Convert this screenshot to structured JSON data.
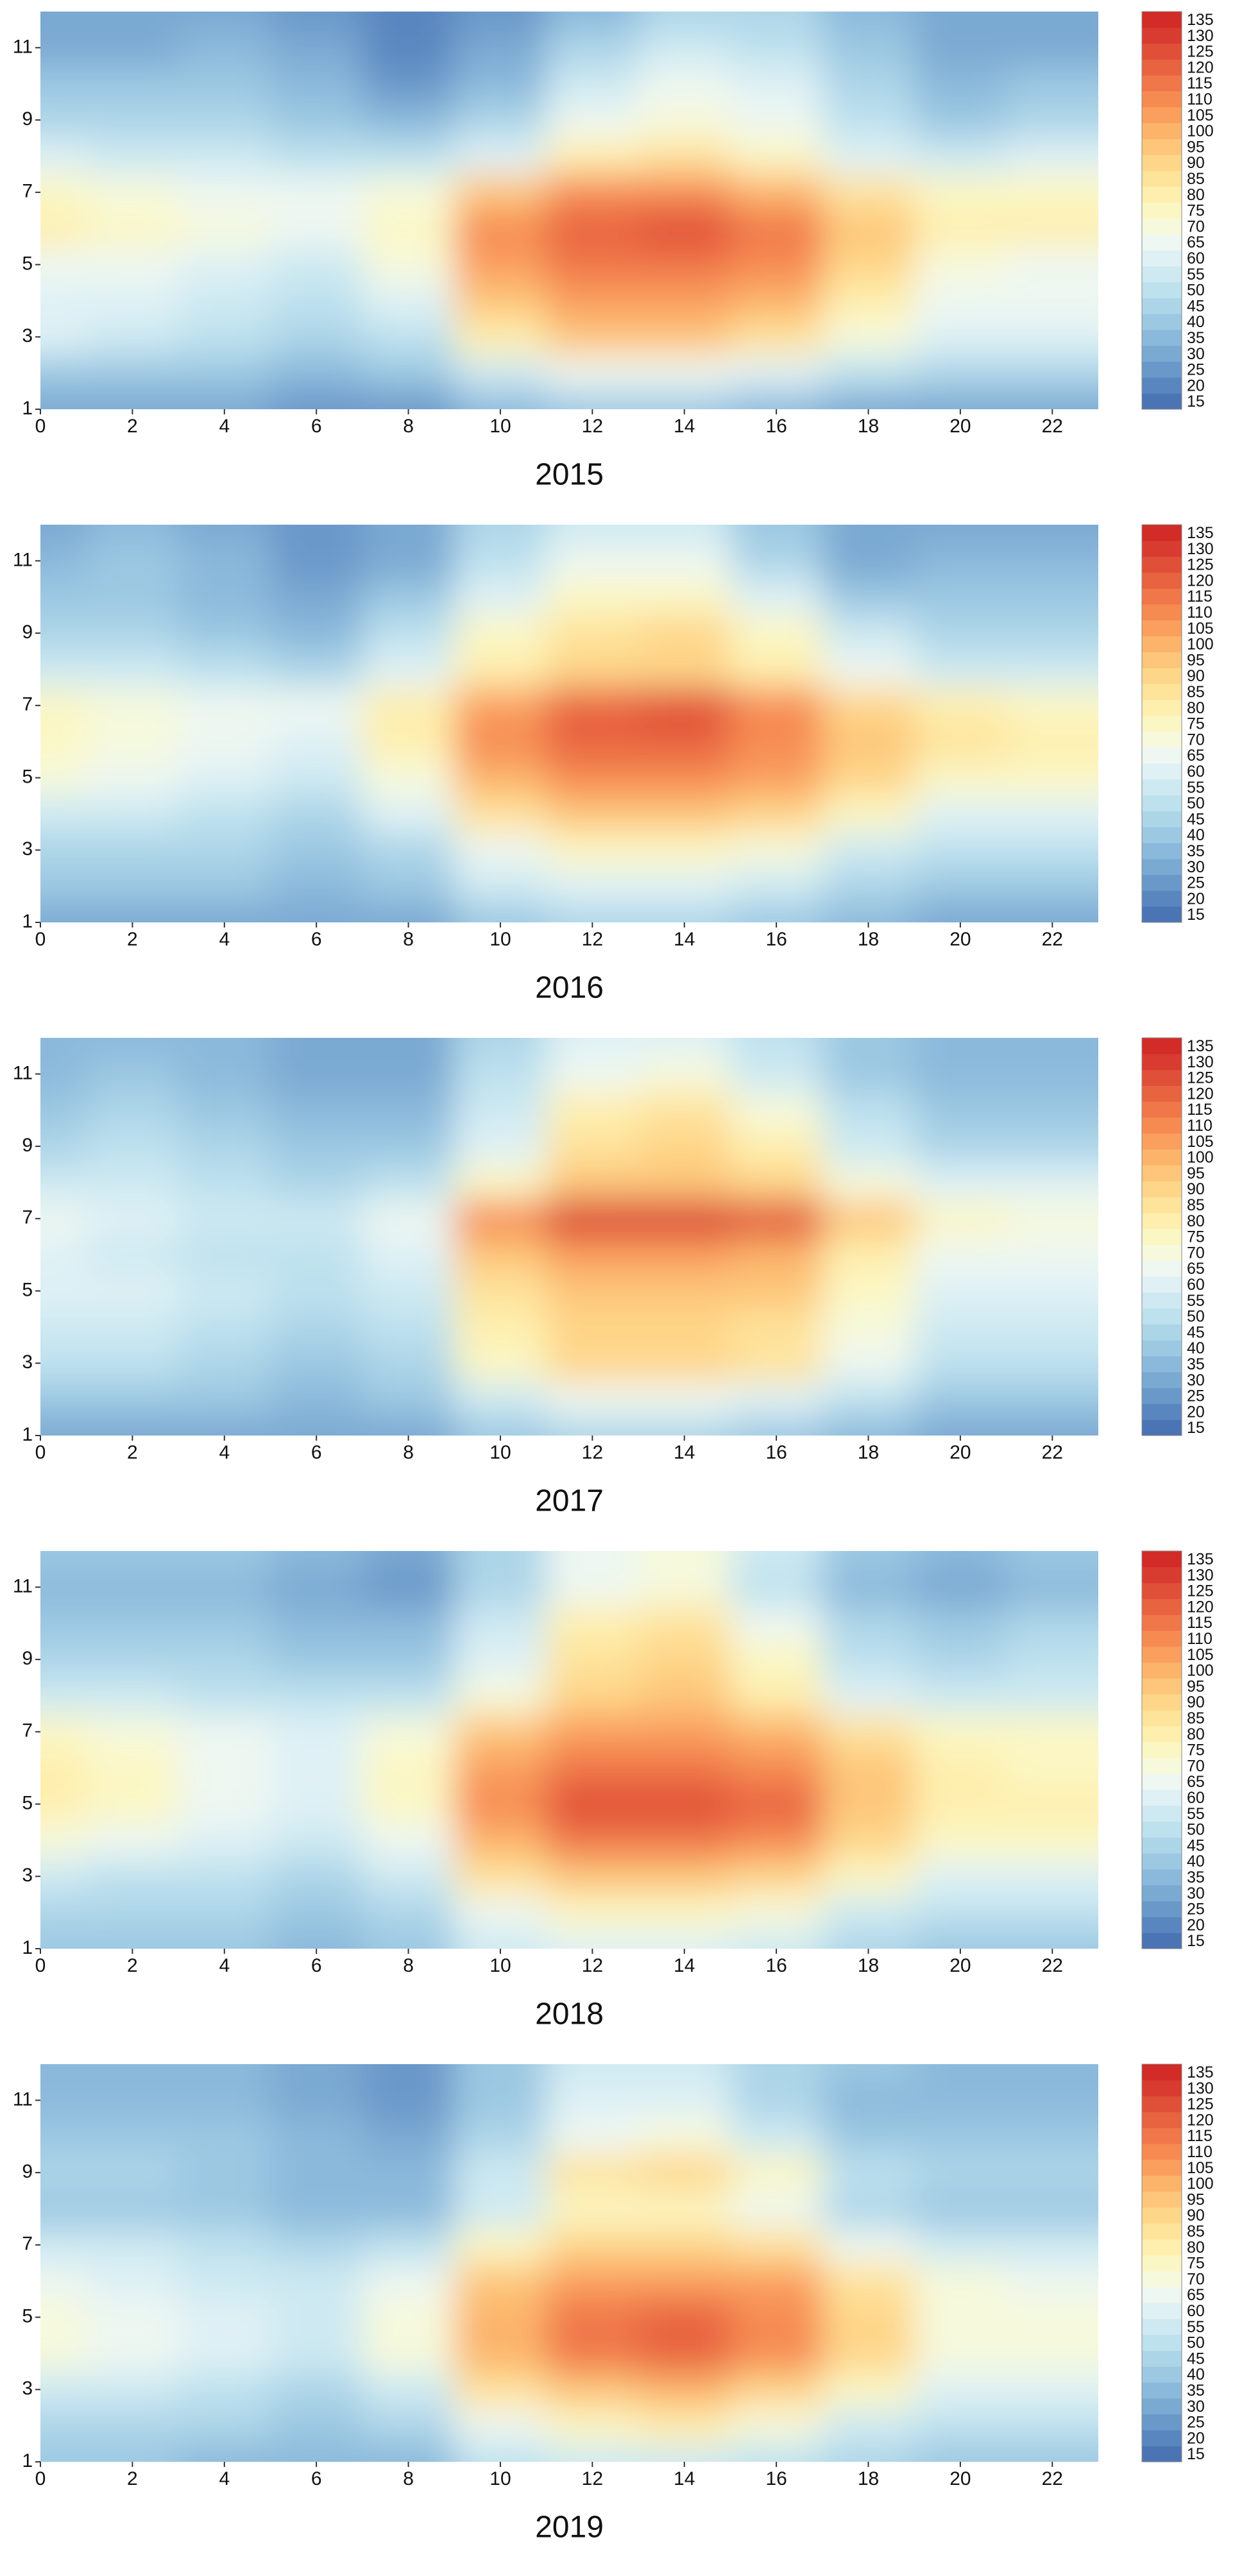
{
  "chart_data": [
    {
      "type": "contour",
      "title": "2015",
      "x": [
        0,
        2,
        4,
        6,
        8,
        10,
        12,
        14,
        16,
        18,
        20,
        22
      ],
      "y": [
        1,
        2,
        3,
        4,
        5,
        6,
        7,
        8,
        9,
        10,
        11,
        12
      ],
      "z": [
        [
          30,
          30,
          30,
          25,
          25,
          35,
          40,
          40,
          35,
          30,
          30,
          30
        ],
        [
          40,
          40,
          40,
          35,
          40,
          55,
          65,
          65,
          60,
          50,
          45,
          45
        ],
        [
          60,
          55,
          50,
          45,
          50,
          80,
          95,
          95,
          85,
          70,
          60,
          60
        ],
        [
          60,
          60,
          55,
          50,
          60,
          95,
          105,
          105,
          100,
          80,
          65,
          65
        ],
        [
          65,
          65,
          60,
          55,
          70,
          105,
          115,
          115,
          110,
          90,
          70,
          65
        ],
        [
          80,
          75,
          70,
          65,
          75,
          110,
          120,
          125,
          115,
          95,
          80,
          80
        ],
        [
          75,
          70,
          65,
          65,
          70,
          95,
          110,
          110,
          100,
          85,
          75,
          75
        ],
        [
          60,
          55,
          55,
          50,
          50,
          60,
          80,
          85,
          75,
          60,
          55,
          60
        ],
        [
          45,
          45,
          45,
          40,
          35,
          45,
          65,
          70,
          65,
          50,
          40,
          45
        ],
        [
          40,
          40,
          40,
          35,
          25,
          35,
          55,
          65,
          60,
          45,
          35,
          40
        ],
        [
          30,
          30,
          35,
          30,
          20,
          30,
          45,
          55,
          50,
          40,
          30,
          30
        ],
        [
          30,
          30,
          30,
          25,
          20,
          25,
          35,
          45,
          45,
          35,
          30,
          30
        ]
      ],
      "xlim": [
        0,
        23
      ],
      "ylim": [
        1,
        12
      ],
      "xticks": [
        0,
        2,
        4,
        6,
        8,
        10,
        12,
        14,
        16,
        18,
        20,
        22
      ],
      "yticks": [
        1,
        3,
        5,
        7,
        9,
        11
      ],
      "levels": [
        15,
        20,
        25,
        30,
        35,
        40,
        45,
        50,
        55,
        60,
        65,
        70,
        75,
        80,
        85,
        90,
        95,
        100,
        105,
        110,
        115,
        120,
        125,
        130,
        135
      ],
      "colors": [
        "#4a74b4",
        "#5a86bf",
        "#6a98c9",
        "#7aa9d2",
        "#8bb9db",
        "#9cc8e2",
        "#add5e8",
        "#bee1ee",
        "#cee9f2",
        "#dff1f5",
        "#eef7f1",
        "#f6f9dc",
        "#fbf7c4",
        "#feefae",
        "#fee39b",
        "#fed689",
        "#fdc67a",
        "#fcb46b",
        "#fa9f5e",
        "#f68b52",
        "#f07749",
        "#e86340",
        "#e04f38",
        "#d83b30",
        "#d22b28"
      ]
    },
    {
      "type": "contour",
      "title": "2016",
      "x": [
        0,
        2,
        4,
        6,
        8,
        10,
        12,
        14,
        16,
        18,
        20,
        22
      ],
      "y": [
        1,
        2,
        3,
        4,
        5,
        6,
        7,
        8,
        9,
        10,
        11,
        12
      ],
      "z": [
        [
          30,
          30,
          30,
          30,
          30,
          40,
          45,
          45,
          40,
          35,
          30,
          30
        ],
        [
          40,
          40,
          40,
          35,
          40,
          55,
          60,
          60,
          55,
          45,
          40,
          40
        ],
        [
          45,
          45,
          45,
          40,
          45,
          65,
          75,
          75,
          70,
          55,
          50,
          50
        ],
        [
          55,
          55,
          50,
          45,
          60,
          85,
          95,
          95,
          90,
          75,
          60,
          60
        ],
        [
          70,
          65,
          60,
          55,
          70,
          100,
          110,
          110,
          105,
          90,
          75,
          75
        ],
        [
          75,
          70,
          65,
          60,
          80,
          110,
          120,
          120,
          110,
          95,
          85,
          80
        ],
        [
          75,
          70,
          65,
          65,
          80,
          105,
          120,
          125,
          110,
          90,
          80,
          75
        ],
        [
          55,
          55,
          50,
          45,
          60,
          80,
          90,
          90,
          80,
          65,
          55,
          55
        ],
        [
          45,
          45,
          40,
          35,
          50,
          75,
          85,
          90,
          75,
          55,
          45,
          45
        ],
        [
          40,
          40,
          35,
          30,
          40,
          60,
          75,
          75,
          60,
          40,
          40,
          40
        ],
        [
          35,
          40,
          35,
          25,
          30,
          50,
          65,
          65,
          45,
          30,
          35,
          35
        ],
        [
          30,
          35,
          30,
          25,
          30,
          45,
          55,
          55,
          40,
          30,
          30,
          30
        ]
      ],
      "xlim": [
        0,
        23
      ],
      "ylim": [
        1,
        12
      ],
      "xticks": [
        0,
        2,
        4,
        6,
        8,
        10,
        12,
        14,
        16,
        18,
        20,
        22
      ],
      "yticks": [
        1,
        3,
        5,
        7,
        9,
        11
      ],
      "levels": [
        15,
        20,
        25,
        30,
        35,
        40,
        45,
        50,
        55,
        60,
        65,
        70,
        75,
        80,
        85,
        90,
        95,
        100,
        105,
        110,
        115,
        120,
        125,
        130,
        135
      ],
      "colors": [
        "#4a74b4",
        "#5a86bf",
        "#6a98c9",
        "#7aa9d2",
        "#8bb9db",
        "#9cc8e2",
        "#add5e8",
        "#bee1ee",
        "#cee9f2",
        "#dff1f5",
        "#eef7f1",
        "#f6f9dc",
        "#fbf7c4",
        "#feefae",
        "#fee39b",
        "#fed689",
        "#fdc67a",
        "#fcb46b",
        "#fa9f5e",
        "#f68b52",
        "#f07749",
        "#e86340",
        "#e04f38",
        "#d83b30",
        "#d22b28"
      ]
    },
    {
      "type": "contour",
      "title": "2017",
      "x": [
        0,
        2,
        4,
        6,
        8,
        10,
        12,
        14,
        16,
        18,
        20,
        22
      ],
      "y": [
        1,
        2,
        3,
        4,
        5,
        6,
        7,
        8,
        9,
        10,
        11,
        12
      ],
      "z": [
        [
          30,
          30,
          30,
          30,
          30,
          40,
          45,
          45,
          40,
          35,
          30,
          30
        ],
        [
          40,
          40,
          40,
          35,
          40,
          55,
          65,
          65,
          60,
          50,
          40,
          40
        ],
        [
          50,
          50,
          45,
          40,
          45,
          75,
          90,
          90,
          85,
          65,
          50,
          50
        ],
        [
          55,
          55,
          50,
          45,
          50,
          80,
          90,
          90,
          85,
          70,
          55,
          55
        ],
        [
          60,
          60,
          55,
          50,
          55,
          85,
          95,
          95,
          95,
          75,
          60,
          60
        ],
        [
          60,
          55,
          50,
          50,
          60,
          95,
          105,
          105,
          100,
          80,
          65,
          65
        ],
        [
          65,
          60,
          55,
          55,
          65,
          110,
          130,
          130,
          125,
          95,
          75,
          70
        ],
        [
          55,
          55,
          50,
          45,
          50,
          75,
          95,
          95,
          90,
          70,
          60,
          60
        ],
        [
          45,
          50,
          45,
          40,
          40,
          60,
          85,
          90,
          80,
          55,
          45,
          45
        ],
        [
          40,
          45,
          40,
          35,
          35,
          55,
          80,
          85,
          70,
          50,
          40,
          40
        ],
        [
          35,
          40,
          35,
          30,
          30,
          50,
          65,
          70,
          55,
          40,
          35,
          35
        ],
        [
          35,
          35,
          35,
          30,
          30,
          45,
          60,
          60,
          50,
          40,
          35,
          35
        ]
      ],
      "xlim": [
        0,
        23
      ],
      "ylim": [
        1,
        12
      ],
      "xticks": [
        0,
        2,
        4,
        6,
        8,
        10,
        12,
        14,
        16,
        18,
        20,
        22
      ],
      "yticks": [
        1,
        3,
        5,
        7,
        9,
        11
      ],
      "levels": [
        15,
        20,
        25,
        30,
        35,
        40,
        45,
        50,
        55,
        60,
        65,
        70,
        75,
        80,
        85,
        90,
        95,
        100,
        105,
        110,
        115,
        120,
        125,
        130,
        135
      ],
      "colors": [
        "#4a74b4",
        "#5a86bf",
        "#6a98c9",
        "#7aa9d2",
        "#8bb9db",
        "#9cc8e2",
        "#add5e8",
        "#bee1ee",
        "#cee9f2",
        "#dff1f5",
        "#eef7f1",
        "#f6f9dc",
        "#fbf7c4",
        "#feefae",
        "#fee39b",
        "#fed689",
        "#fdc67a",
        "#fcb46b",
        "#fa9f5e",
        "#f68b52",
        "#f07749",
        "#e86340",
        "#e04f38",
        "#d83b30",
        "#d22b28"
      ]
    },
    {
      "type": "contour",
      "title": "2018",
      "x": [
        0,
        2,
        4,
        6,
        8,
        10,
        12,
        14,
        16,
        18,
        20,
        22
      ],
      "y": [
        1,
        2,
        3,
        4,
        5,
        6,
        7,
        8,
        9,
        10,
        11,
        12
      ],
      "z": [
        [
          40,
          40,
          40,
          35,
          40,
          55,
          60,
          60,
          55,
          45,
          40,
          40
        ],
        [
          45,
          45,
          45,
          40,
          45,
          65,
          75,
          75,
          70,
          55,
          50,
          50
        ],
        [
          55,
          50,
          50,
          45,
          55,
          85,
          95,
          95,
          90,
          75,
          60,
          60
        ],
        [
          70,
          65,
          60,
          55,
          65,
          100,
          115,
          115,
          110,
          90,
          75,
          75
        ],
        [
          80,
          75,
          65,
          60,
          75,
          110,
          125,
          125,
          120,
          95,
          80,
          80
        ],
        [
          80,
          75,
          65,
          60,
          75,
          105,
          115,
          115,
          110,
          95,
          80,
          75
        ],
        [
          75,
          70,
          65,
          60,
          70,
          95,
          105,
          105,
          100,
          85,
          75,
          75
        ],
        [
          55,
          55,
          50,
          50,
          50,
          70,
          90,
          95,
          80,
          60,
          55,
          55
        ],
        [
          45,
          45,
          45,
          40,
          40,
          60,
          85,
          90,
          75,
          50,
          45,
          50
        ],
        [
          40,
          40,
          40,
          35,
          35,
          55,
          80,
          85,
          65,
          45,
          40,
          45
        ],
        [
          35,
          35,
          35,
          30,
          25,
          45,
          65,
          70,
          50,
          35,
          30,
          35
        ],
        [
          40,
          40,
          40,
          35,
          30,
          45,
          65,
          70,
          55,
          40,
          35,
          40
        ]
      ],
      "xlim": [
        0,
        23
      ],
      "ylim": [
        1,
        12
      ],
      "xticks": [
        0,
        2,
        4,
        6,
        8,
        10,
        12,
        14,
        16,
        18,
        20,
        22
      ],
      "yticks": [
        1,
        3,
        5,
        7,
        9,
        11
      ],
      "levels": [
        15,
        20,
        25,
        30,
        35,
        40,
        45,
        50,
        55,
        60,
        65,
        70,
        75,
        80,
        85,
        90,
        95,
        100,
        105,
        110,
        115,
        120,
        125,
        130,
        135
      ],
      "colors": [
        "#4a74b4",
        "#5a86bf",
        "#6a98c9",
        "#7aa9d2",
        "#8bb9db",
        "#9cc8e2",
        "#add5e8",
        "#bee1ee",
        "#cee9f2",
        "#dff1f5",
        "#eef7f1",
        "#f6f9dc",
        "#fbf7c4",
        "#feefae",
        "#fee39b",
        "#fed689",
        "#fdc67a",
        "#fcb46b",
        "#fa9f5e",
        "#f68b52",
        "#f07749",
        "#e86340",
        "#e04f38",
        "#d83b30",
        "#d22b28"
      ]
    },
    {
      "type": "contour",
      "title": "2019",
      "x": [
        0,
        2,
        4,
        6,
        8,
        10,
        12,
        14,
        16,
        18,
        20,
        22
      ],
      "y": [
        1,
        2,
        3,
        4,
        5,
        6,
        7,
        8,
        9,
        10,
        11,
        12
      ],
      "z": [
        [
          40,
          40,
          35,
          35,
          35,
          50,
          55,
          55,
          50,
          45,
          40,
          40
        ],
        [
          45,
          45,
          45,
          40,
          45,
          65,
          75,
          80,
          70,
          55,
          50,
          50
        ],
        [
          55,
          55,
          50,
          45,
          55,
          85,
          95,
          100,
          90,
          75,
          60,
          60
        ],
        [
          70,
          65,
          60,
          55,
          70,
          100,
          115,
          120,
          110,
          90,
          70,
          70
        ],
        [
          70,
          65,
          60,
          55,
          70,
          100,
          115,
          120,
          110,
          90,
          70,
          70
        ],
        [
          65,
          60,
          55,
          55,
          65,
          95,
          105,
          105,
          105,
          85,
          70,
          65
        ],
        [
          55,
          55,
          50,
          45,
          50,
          75,
          90,
          90,
          85,
          65,
          55,
          55
        ],
        [
          40,
          40,
          40,
          35,
          35,
          55,
          75,
          75,
          65,
          45,
          40,
          40
        ],
        [
          45,
          45,
          40,
          35,
          35,
          55,
          85,
          90,
          75,
          50,
          45,
          45
        ],
        [
          40,
          40,
          40,
          35,
          30,
          45,
          65,
          70,
          55,
          40,
          40,
          40
        ],
        [
          35,
          35,
          35,
          30,
          25,
          40,
          60,
          60,
          45,
          35,
          35,
          35
        ],
        [
          35,
          35,
          35,
          30,
          25,
          40,
          55,
          55,
          45,
          40,
          35,
          35
        ]
      ],
      "xlim": [
        0,
        23
      ],
      "ylim": [
        1,
        12
      ],
      "xticks": [
        0,
        2,
        4,
        6,
        8,
        10,
        12,
        14,
        16,
        18,
        20,
        22
      ],
      "yticks": [
        1,
        3,
        5,
        7,
        9,
        11
      ],
      "levels": [
        15,
        20,
        25,
        30,
        35,
        40,
        45,
        50,
        55,
        60,
        65,
        70,
        75,
        80,
        85,
        90,
        95,
        100,
        105,
        110,
        115,
        120,
        125,
        130,
        135
      ],
      "colors": [
        "#4a74b4",
        "#5a86bf",
        "#6a98c9",
        "#7aa9d2",
        "#8bb9db",
        "#9cc8e2",
        "#add5e8",
        "#bee1ee",
        "#cee9f2",
        "#dff1f5",
        "#eef7f1",
        "#f6f9dc",
        "#fbf7c4",
        "#feefae",
        "#fee39b",
        "#fed689",
        "#fdc67a",
        "#fcb46b",
        "#fa9f5e",
        "#f68b52",
        "#f07749",
        "#e86340",
        "#e04f38",
        "#d83b30",
        "#d22b28"
      ]
    }
  ]
}
